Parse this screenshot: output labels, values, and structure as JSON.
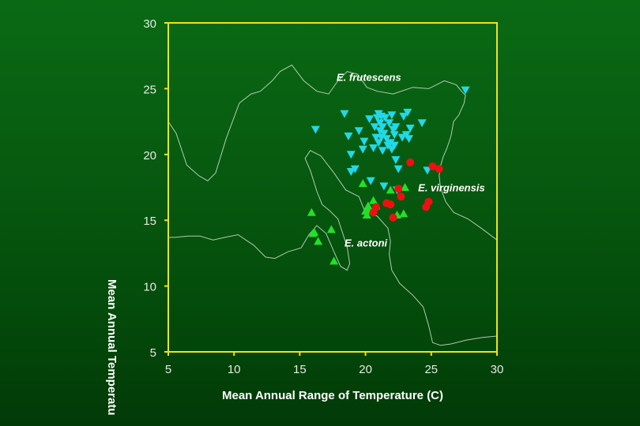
{
  "chart_data": {
    "type": "scatter",
    "xlabel": "Mean Annual Range of Temperature (C)",
    "ylabel": "Mean Annual Temperatu",
    "xlim": [
      5,
      30
    ],
    "ylim": [
      5,
      30
    ],
    "xticks": [
      "5",
      "10",
      "15",
      "20",
      "25",
      "30"
    ],
    "yticks": [
      "5",
      "10",
      "15",
      "20",
      "25",
      "30"
    ],
    "grid": false,
    "colors": {
      "frame": "#f2e21c",
      "contour": "#cfe0cf",
      "frutescens": "#22d8e8",
      "actoni": "#22e02a",
      "virginensis": "#ee1010"
    },
    "annotations": [
      {
        "text": "E. frutescens",
        "x": 17.8,
        "y": 25.6
      },
      {
        "text": "E. virginensis",
        "x": 24.0,
        "y": 17.2
      },
      {
        "text": "E. actoni",
        "x": 18.4,
        "y": 13.0
      }
    ],
    "series": [
      {
        "marker": "triangle-down",
        "x": [
          16.2,
          18.4,
          18.7,
          18.9,
          19.2,
          19.5,
          19.8,
          19.9,
          20.3,
          20.6,
          20.7,
          20.8,
          20.9,
          21.0,
          21.0,
          21.1,
          21.1,
          21.2,
          21.2,
          21.3,
          21.3,
          21.4,
          21.5,
          21.6,
          21.7,
          21.8,
          21.9,
          22.0,
          22.0,
          22.1,
          22.2,
          22.2,
          22.3,
          22.3,
          22.5,
          22.8,
          22.9,
          23.1,
          23.2,
          23.3,
          23.4,
          24.3,
          24.7,
          27.6,
          18.9,
          20.4,
          21.4,
          22.4
        ],
        "y": [
          21.9,
          23.1,
          21.4,
          20.0,
          18.9,
          21.8,
          20.4,
          21.0,
          22.7,
          20.5,
          22.1,
          21.3,
          22.8,
          23.1,
          20.9,
          22.4,
          21.8,
          22.9,
          21.3,
          22.1,
          20.3,
          21.6,
          22.8,
          21.2,
          20.7,
          22.4,
          20.9,
          23.0,
          20.4,
          21.9,
          20.7,
          21.5,
          19.6,
          22.1,
          18.9,
          21.3,
          22.9,
          21.5,
          23.2,
          21.2,
          22.0,
          22.4,
          18.8,
          24.9,
          18.7,
          18.0,
          17.6,
          17.3
        ]
      },
      {
        "marker": "triangle-up",
        "x": [
          15.9,
          16.0,
          16.1,
          16.4,
          17.4,
          17.6,
          19.8,
          20.0,
          20.1,
          20.2,
          20.3,
          20.6,
          20.8,
          21.9,
          22.4,
          22.9,
          23.0
        ],
        "y": [
          15.6,
          14.0,
          14.1,
          13.4,
          14.3,
          11.9,
          17.8,
          15.7,
          15.4,
          16.1,
          15.9,
          16.5,
          16.1,
          17.3,
          15.4,
          15.5,
          17.5
        ]
      },
      {
        "marker": "circle",
        "x": [
          20.6,
          20.8,
          21.6,
          21.9,
          22.1,
          22.5,
          22.7,
          23.4,
          24.6,
          24.8,
          25.1,
          25.6
        ],
        "y": [
          15.6,
          16.0,
          16.3,
          16.2,
          15.2,
          17.4,
          16.8,
          19.4,
          16.0,
          16.4,
          19.1,
          18.9
        ]
      }
    ],
    "contours": [
      [
        [
          5.0,
          22.5
        ],
        [
          5.6,
          21.6
        ],
        [
          6.4,
          19.2
        ],
        [
          7.3,
          18.4
        ],
        [
          8.0,
          18.0
        ],
        [
          8.6,
          18.6
        ],
        [
          9.4,
          21.2
        ],
        [
          10.4,
          23.9
        ],
        [
          11.3,
          24.6
        ],
        [
          12.0,
          24.8
        ],
        [
          12.9,
          25.6
        ],
        [
          13.5,
          26.3
        ],
        [
          14.4,
          26.8
        ],
        [
          15.3,
          25.6
        ],
        [
          16.3,
          24.8
        ],
        [
          17.2,
          24.6
        ],
        [
          17.9,
          25.6
        ],
        [
          18.6,
          26.3
        ],
        [
          19.4,
          26.1
        ],
        [
          20.1,
          25.1
        ],
        [
          20.9,
          24.8
        ],
        [
          22.1,
          24.6
        ],
        [
          23.6,
          25.1
        ],
        [
          24.8,
          25.0
        ],
        [
          26.0,
          25.6
        ],
        [
          26.9,
          25.3
        ],
        [
          27.3,
          24.8
        ],
        [
          27.6,
          24.5
        ],
        [
          27.5,
          23.9
        ],
        [
          27.1,
          23.0
        ],
        [
          26.7,
          22.5
        ],
        [
          26.5,
          21.4
        ],
        [
          26.2,
          20.5
        ],
        [
          25.9,
          19.8
        ],
        [
          25.7,
          19.1
        ],
        [
          25.6,
          18.4
        ],
        [
          25.7,
          17.5
        ],
        [
          26.1,
          16.4
        ],
        [
          26.7,
          15.6
        ],
        [
          27.8,
          15.1
        ],
        [
          28.8,
          14.4
        ],
        [
          30.0,
          13.5
        ]
      ],
      [
        [
          5.0,
          13.7
        ],
        [
          5.5,
          13.7
        ],
        [
          6.5,
          13.8
        ],
        [
          7.4,
          13.8
        ],
        [
          8.4,
          13.5
        ],
        [
          9.3,
          13.7
        ],
        [
          10.3,
          13.9
        ],
        [
          11.5,
          13.1
        ],
        [
          12.4,
          12.2
        ],
        [
          13.1,
          12.1
        ],
        [
          14.1,
          12.6
        ],
        [
          15.1,
          12.9
        ],
        [
          15.7,
          13.9
        ],
        [
          16.3,
          14.6
        ],
        [
          17.0,
          14.0
        ],
        [
          17.6,
          12.6
        ],
        [
          18.1,
          11.5
        ],
        [
          18.6,
          11.2
        ],
        [
          18.8,
          11.7
        ],
        [
          18.6,
          13.0
        ],
        [
          17.9,
          15.1
        ],
        [
          17.3,
          15.7
        ],
        [
          16.7,
          16.2
        ],
        [
          16.3,
          17.2
        ],
        [
          15.8,
          18.8
        ],
        [
          15.4,
          19.7
        ],
        [
          15.8,
          20.3
        ],
        [
          16.6,
          19.9
        ],
        [
          17.6,
          18.6
        ],
        [
          18.5,
          17.3
        ],
        [
          19.5,
          16.8
        ],
        [
          19.9,
          15.8
        ],
        [
          20.9,
          15.3
        ],
        [
          21.7,
          14.4
        ],
        [
          21.9,
          13.4
        ],
        [
          21.8,
          12.4
        ],
        [
          22.0,
          11.2
        ],
        [
          22.6,
          10.2
        ],
        [
          23.6,
          9.3
        ],
        [
          24.4,
          8.4
        ],
        [
          24.8,
          7.0
        ],
        [
          25.1,
          5.7
        ],
        [
          25.7,
          5.5
        ],
        [
          26.5,
          5.6
        ],
        [
          27.7,
          5.9
        ],
        [
          28.9,
          6.1
        ],
        [
          30.0,
          6.2
        ]
      ]
    ]
  }
}
